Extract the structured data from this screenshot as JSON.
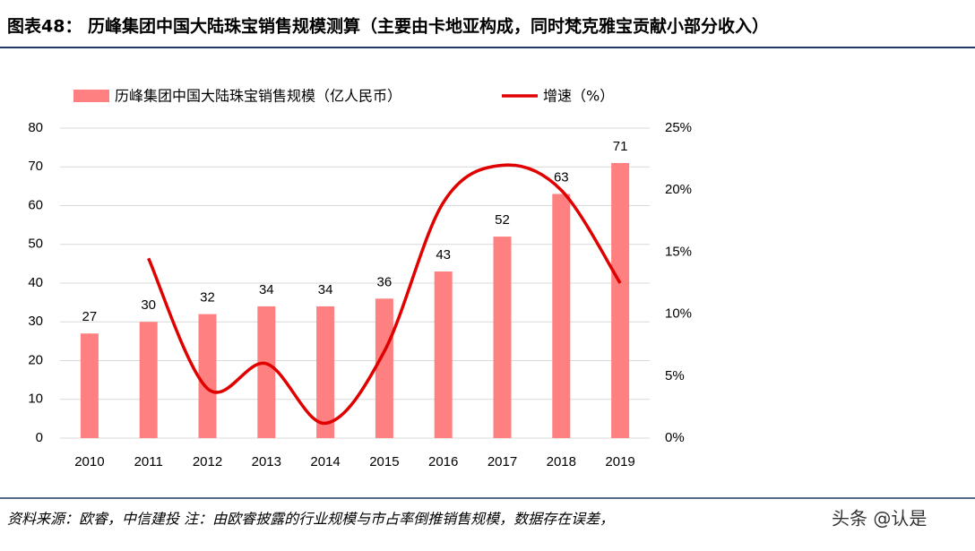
{
  "chart_data": {
    "type": "bar-line",
    "title": "图表48：   历峰集团中国大陆珠宝销售规模测算（主要由卡地亚构成，同时梵克雅宝贡献小部分收入）",
    "footnote": "资料来源：欧睿，中信建投   注：由欧睿披露的行业规模与市占率倒推销售规模，数据存在误差，",
    "watermark": "头条 @认是",
    "categories": [
      "2010",
      "2011",
      "2012",
      "2013",
      "2014",
      "2015",
      "2016",
      "2017",
      "2018",
      "2019"
    ],
    "series": [
      {
        "name": "历峰集团中国大陆珠宝销售规模（亿人民币）",
        "type": "bar",
        "color": "#ff8080",
        "values": [
          27,
          30,
          32,
          34,
          34,
          36,
          43,
          52,
          63,
          71
        ]
      },
      {
        "name": "增速（%）",
        "type": "line",
        "axis": "y2",
        "color": "#e00000",
        "values": [
          null,
          14.5,
          4,
          6,
          1.2,
          7,
          19,
          22,
          20,
          12.5
        ]
      }
    ],
    "ylim": [
      0,
      80
    ],
    "yticks": [
      0,
      10,
      20,
      30,
      40,
      50,
      60,
      70,
      80
    ],
    "y2lim": [
      0,
      25
    ],
    "y2ticks": [
      {
        "value": 0,
        "label": "0%"
      },
      {
        "value": 5,
        "label": "5%"
      },
      {
        "value": 10,
        "label": "10%"
      },
      {
        "value": 15,
        "label": "15%"
      },
      {
        "value": 20,
        "label": "20%"
      },
      {
        "value": 25,
        "label": "25%"
      }
    ],
    "grid": true,
    "legend": "top"
  }
}
